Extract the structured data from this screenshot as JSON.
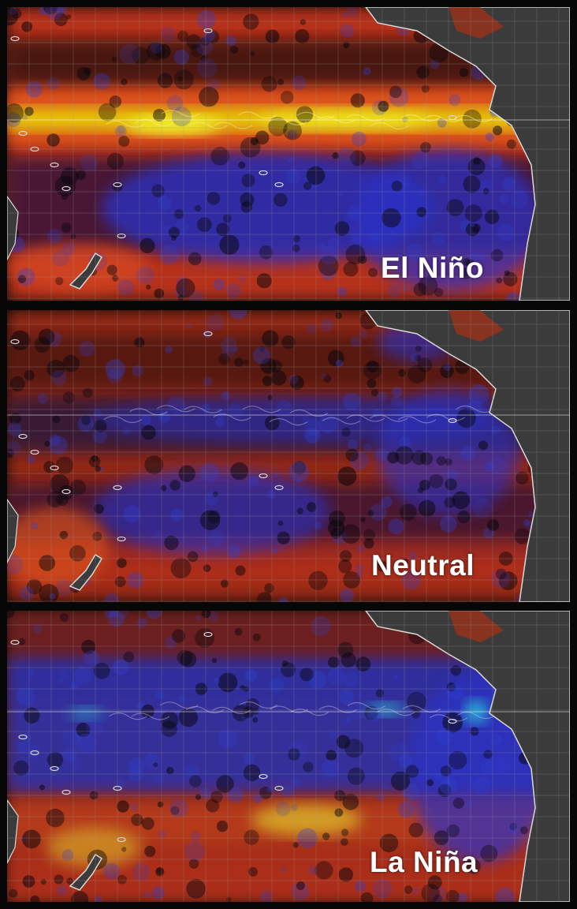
{
  "panels": [
    {
      "label": "El Niño",
      "id": "el-nino",
      "equator_color": "#e8f000"
    },
    {
      "label": "Neutral",
      "id": "neutral",
      "equator_color": "#2a4cff"
    },
    {
      "label": "La Niña",
      "id": "la-nina",
      "equator_color": "#28e0e0"
    }
  ],
  "colors": {
    "land": "#3b3b3b",
    "coastline": "#d9d9d9",
    "grid": "#9a9a9a",
    "warm": "#c4361a",
    "hot": "#e8f000",
    "cold": "#2a33c8"
  }
}
